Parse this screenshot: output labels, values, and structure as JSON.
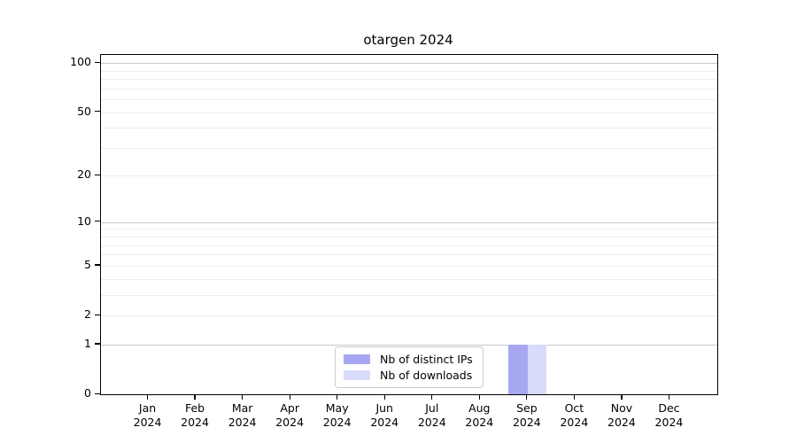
{
  "chart_data": {
    "type": "bar",
    "title": "otargen 2024",
    "categories": [
      {
        "month": "Jan",
        "year": "2024"
      },
      {
        "month": "Feb",
        "year": "2024"
      },
      {
        "month": "Mar",
        "year": "2024"
      },
      {
        "month": "Apr",
        "year": "2024"
      },
      {
        "month": "May",
        "year": "2024"
      },
      {
        "month": "Jun",
        "year": "2024"
      },
      {
        "month": "Jul",
        "year": "2024"
      },
      {
        "month": "Aug",
        "year": "2024"
      },
      {
        "month": "Sep",
        "year": "2024"
      },
      {
        "month": "Oct",
        "year": "2024"
      },
      {
        "month": "Nov",
        "year": "2024"
      },
      {
        "month": "Dec",
        "year": "2024"
      }
    ],
    "series": [
      {
        "name": "Nb of distinct IPs",
        "color": "#a7a7f1",
        "values": [
          0,
          0,
          0,
          0,
          0,
          0,
          0,
          0,
          1,
          0,
          0,
          0
        ]
      },
      {
        "name": "Nb of downloads",
        "color": "#d8dbfa",
        "values": [
          0,
          0,
          0,
          0,
          0,
          0,
          0,
          0,
          1,
          0,
          0,
          0
        ]
      }
    ],
    "y_axis": {
      "scale": "log1p",
      "ticks": [
        {
          "value": 0,
          "label": "0"
        },
        {
          "value": 1,
          "label": "1"
        },
        {
          "value": 2,
          "label": "2"
        },
        {
          "value": 5,
          "label": "5"
        },
        {
          "value": 10,
          "label": "10"
        },
        {
          "value": 20,
          "label": "20"
        },
        {
          "value": 50,
          "label": "50"
        },
        {
          "value": 100,
          "label": "100"
        }
      ],
      "major_gridline_values": [
        1,
        10,
        100
      ],
      "minor_gridline_values": [
        2,
        3,
        4,
        5,
        6,
        7,
        8,
        9,
        20,
        30,
        40,
        50,
        60,
        70,
        80,
        90
      ],
      "range_top_value": 112
    },
    "legend": {
      "position": "lower-center"
    },
    "grid": true
  },
  "colors": {
    "major_grid": "#c9c9c9",
    "minor_grid": "#ededed",
    "spine": "#000000",
    "legend_border": "#cccccc",
    "background": "#ffffff"
  }
}
